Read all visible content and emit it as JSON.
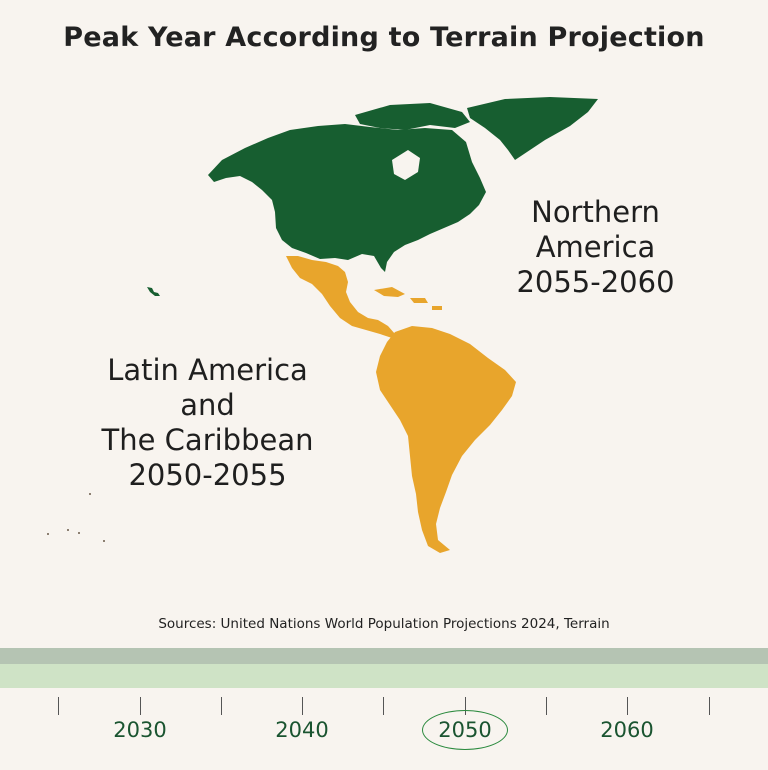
{
  "title": "Peak Year According to Terrain Projection",
  "regions": {
    "northern_america": {
      "lines": [
        "Northern",
        "America",
        "2055-2060"
      ],
      "color": "#175e30"
    },
    "latin_america": {
      "lines": [
        "Latin America",
        "and",
        "The Caribbean",
        "2050-2055"
      ],
      "color": "#e8a52c"
    }
  },
  "sources": "Sources: United Nations World Population Projections 2024, Terrain",
  "timeline": {
    "years": [
      "2030",
      "2040",
      "2050",
      "2060"
    ],
    "highlighted_year": "2050",
    "band_colors": [
      "#b5c4b3",
      "#cfe3c6"
    ]
  }
}
